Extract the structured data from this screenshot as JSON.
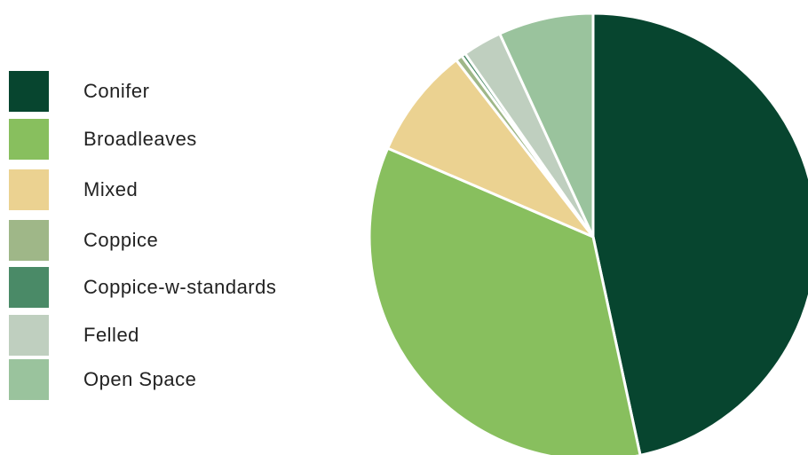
{
  "chart_data": {
    "type": "pie",
    "title": "",
    "legend_position": "left",
    "series": [
      {
        "name": "Conifer",
        "value": 47.6,
        "color": "#07452f"
      },
      {
        "name": "Broadleaves",
        "value": 35.6,
        "color": "#88bf5e"
      },
      {
        "name": "Mixed",
        "value": 8.2,
        "color": "#ebd291"
      },
      {
        "name": "Coppice",
        "value": 0.5,
        "color": "#9fb788"
      },
      {
        "name": "Coppice-w-standards",
        "value": 0.3,
        "color": "#4a8a67"
      },
      {
        "name": "Felled",
        "value": 2.9,
        "color": "#bfcfbf"
      },
      {
        "name": "Open Space",
        "value": 7.0,
        "color": "#9ac39d"
      }
    ]
  }
}
